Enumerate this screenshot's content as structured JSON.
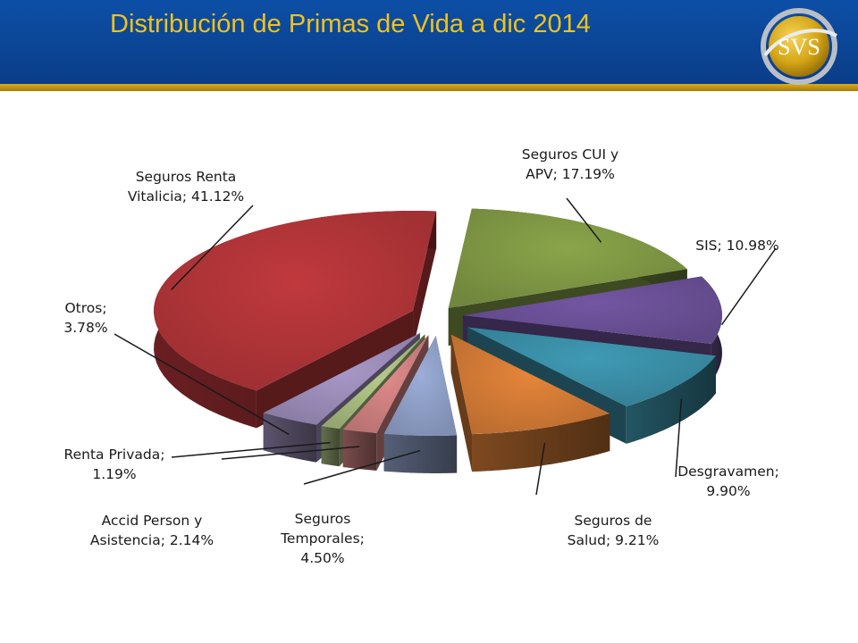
{
  "header": {
    "title": "Distribución de Primas de Vida a dic 2014"
  },
  "logo": {
    "text": "SVS"
  },
  "colors": {
    "header_blue": "#0b46a0",
    "accent_gold": "#d4a516"
  },
  "chart_data": {
    "type": "pie",
    "title": "",
    "style": "3d-exploded",
    "slices": [
      {
        "name": "Seguros CUI y APV",
        "value": 17.19,
        "label_lines": [
          "Seguros CUI y",
          "APV; 17.19%"
        ],
        "color": "#8aa54a"
      },
      {
        "name": "SIS",
        "value": 10.98,
        "label_lines": [
          "SIS; 10.98%"
        ],
        "color": "#7356a2"
      },
      {
        "name": "Desgravamen",
        "value": 9.9,
        "label_lines": [
          "Desgravamen;",
          "9.90%"
        ],
        "color": "#3f9ab4"
      },
      {
        "name": "Seguros de Salud",
        "value": 9.21,
        "label_lines": [
          "Seguros de",
          "Salud; 9.21%"
        ],
        "color": "#e5853a"
      },
      {
        "name": "Seguros Temporales",
        "value": 4.5,
        "label_lines": [
          "Seguros",
          "Temporales;",
          "4.50%"
        ],
        "color": "#9badd8"
      },
      {
        "name": "Accid Person y Asistencia",
        "value": 2.14,
        "label_lines": [
          "Accid Person y",
          "Asistencia; 2.14%"
        ],
        "color": "#e08b8b"
      },
      {
        "name": "Renta Privada",
        "value": 1.19,
        "label_lines": [
          "Renta Privada;",
          "1.19%"
        ],
        "color": "#b6cc8a"
      },
      {
        "name": "Otros",
        "value": 3.78,
        "label_lines": [
          "Otros;",
          "3.78%"
        ],
        "color": "#a898c8"
      },
      {
        "name": "Seguros Renta Vitalicia",
        "value": 41.12,
        "label_lines": [
          "Seguros Renta",
          "Vitalicia; 41.12%"
        ],
        "color": "#c0393d"
      }
    ]
  }
}
